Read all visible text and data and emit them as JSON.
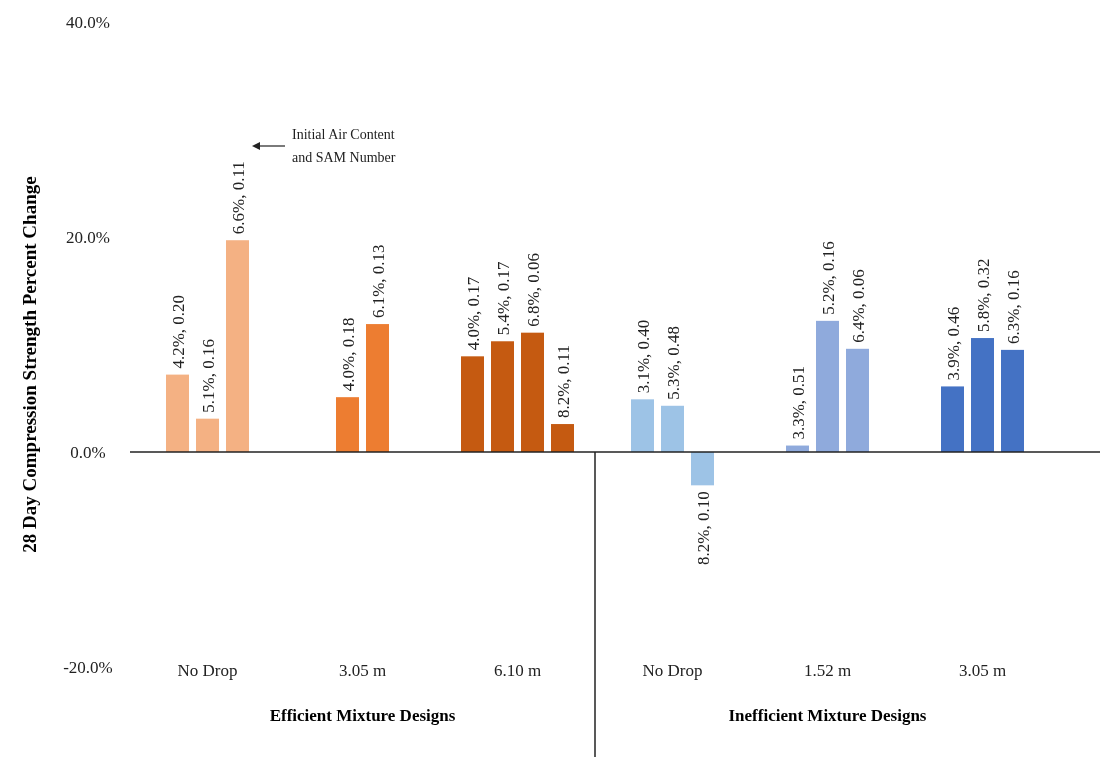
{
  "chart_data": {
    "type": "bar",
    "ylabel": "28 Day Compression  Strength Percent Change",
    "categories": [
      "No Drop",
      "3.05 m",
      "6.10 m",
      "No Drop",
      "1.52 m",
      "3.05 m"
    ],
    "series": [
      {
        "colors": [
          "#f4b183",
          "#ed7d31",
          "#c55a11",
          "#9dc3e6",
          "#8faadc",
          "#4472c4"
        ],
        "values": [
          7.2,
          5.1,
          8.9,
          4.9,
          0.6,
          6.1
        ]
      },
      {
        "colors": [
          "#f4b183",
          "#ed7d31",
          "#c55a11",
          "#9dc3e6",
          "#8faadc",
          "#4472c4"
        ],
        "values": [
          3.1,
          11.9,
          10.3,
          4.3,
          12.2,
          10.6
        ]
      },
      {
        "colors": [
          "#f4b183",
          null,
          "#c55a11",
          "#9dc3e6",
          "#8faadc",
          "#4472c4"
        ],
        "values": [
          19.7,
          null,
          11.1,
          -3.1,
          9.6,
          9.5
        ]
      },
      {
        "colors": [
          null,
          null,
          "#c55a11",
          null,
          null,
          null
        ],
        "values": [
          null,
          null,
          2.6,
          null,
          null,
          null
        ]
      }
    ],
    "ylim": [
      -20,
      40
    ],
    "yticks": [
      {
        "value": -20,
        "label": "-20.0%"
      },
      {
        "value": 0,
        "label": "0.0%"
      },
      {
        "value": 20,
        "label": "20.0%"
      },
      {
        "value": 40,
        "label": "40.0%"
      }
    ],
    "annotations": [
      "Initial Air Content and SAM Number",
      "Efficient Mixture Designs",
      "Inefficient Mixture Designs",
      "4.2%, 0.20",
      "5.1%, 0.16",
      "6.6%, 0.11",
      "4.0%, 0.18",
      "6.1%, 0.13",
      "4.0%, 0.17",
      "5.4%, 0.17",
      "6.8%, 0.06",
      "8.2%, 0.11",
      "3.1%, 0.40",
      "5.3%, 0.48",
      "8.2%, 0.10",
      "3.3%, 0.51",
      "5.2%, 0.16",
      "6.4%, 0.06",
      "3.9%, 0.46",
      "5.8%, 0.32",
      "6.3%, 0.16"
    ]
  }
}
